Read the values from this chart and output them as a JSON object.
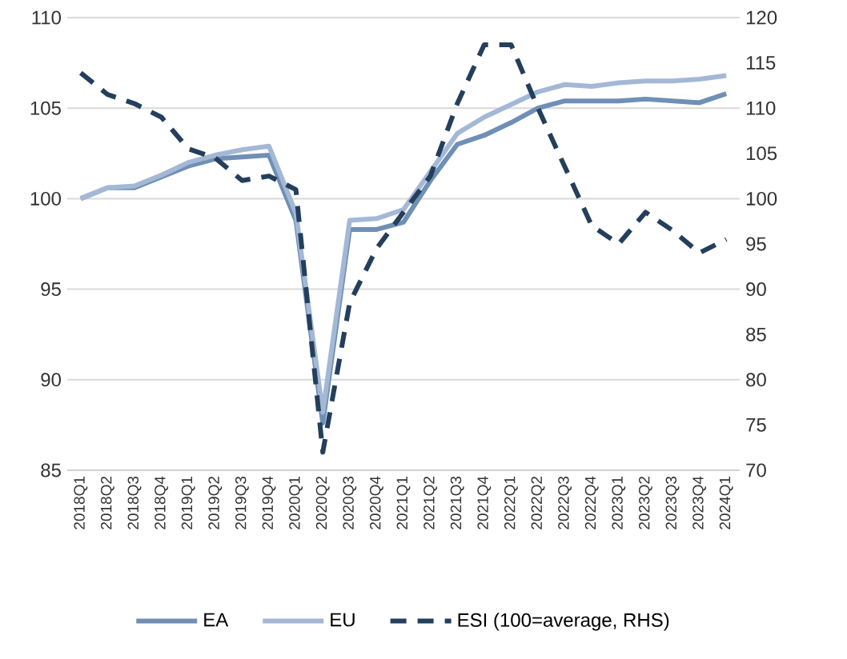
{
  "chart_data": {
    "type": "line",
    "categories": [
      "2018Q1",
      "2018Q2",
      "2018Q3",
      "2018Q4",
      "2019Q1",
      "2019Q2",
      "2019Q3",
      "2019Q4",
      "2020Q1",
      "2020Q2",
      "2020Q3",
      "2020Q4",
      "2021Q1",
      "2021Q2",
      "2021Q3",
      "2021Q4",
      "2022Q1",
      "2022Q2",
      "2022Q3",
      "2022Q4",
      "2023Q1",
      "2023Q2",
      "2023Q3",
      "2023Q4",
      "2024Q1"
    ],
    "series": [
      {
        "name": "EA",
        "color": "#6f8fb5",
        "line_style": "solid",
        "values": [
          100,
          100.6,
          100.6,
          101.2,
          101.8,
          102.2,
          102.3,
          102.4,
          98.8,
          87.6,
          98.3,
          98.3,
          98.7,
          101.0,
          103.0,
          103.5,
          104.2,
          105.0,
          105.4,
          105.4,
          105.4,
          105.5,
          105.4,
          105.3,
          105.8
        ]
      },
      {
        "name": "EU",
        "color": "#a4b8d6",
        "line_style": "solid",
        "values": [
          100,
          100.6,
          100.7,
          101.3,
          102.0,
          102.4,
          102.7,
          102.9,
          99.2,
          88.2,
          98.8,
          98.9,
          99.4,
          101.5,
          103.6,
          104.5,
          105.2,
          105.9,
          106.3,
          106.2,
          106.4,
          106.5,
          106.5,
          106.6,
          106.8
        ]
      },
      {
        "name": "ESI (100=average, RHS)",
        "color": "#243f5c",
        "line_style": "dashed",
        "axis": "y2",
        "values": [
          113.9,
          111.5,
          110.5,
          109.0,
          105.5,
          104.5,
          102.0,
          102.5,
          101.0,
          72.0,
          88.5,
          94.5,
          98.5,
          102.5,
          110.5,
          117.0,
          117.0,
          110.0,
          103.5,
          97.0,
          95.0,
          98.5,
          96.5,
          94.0,
          95.5
        ]
      }
    ],
    "ylim": [
      85,
      110
    ],
    "yticks": [
      85,
      90,
      95,
      100,
      105,
      110
    ],
    "y2lim": [
      70,
      120
    ],
    "y2ticks": [
      70,
      75,
      80,
      85,
      90,
      95,
      100,
      105,
      110,
      115,
      120
    ],
    "grid": "y",
    "legend": "bottom",
    "marker": "none"
  }
}
